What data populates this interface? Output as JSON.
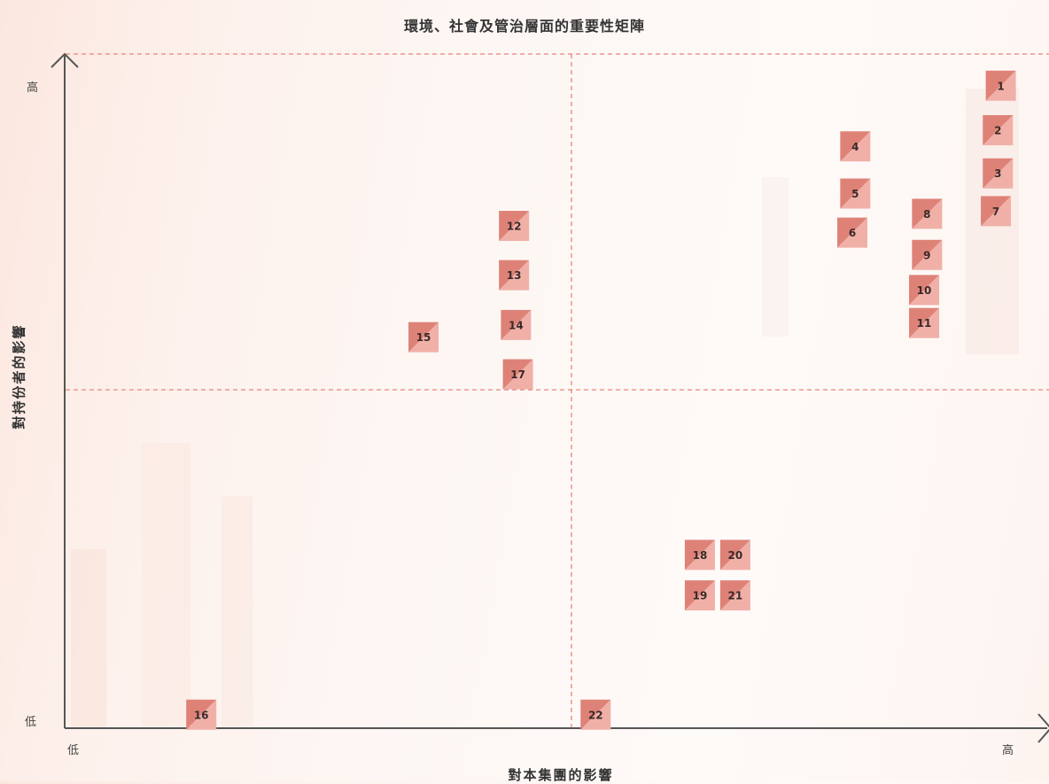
{
  "chart_data": {
    "type": "scatter",
    "title": "環境、社會及管治層面的重要性矩陣",
    "xlabel": "對本集團的影響",
    "ylabel": "對持份者的影響",
    "x_ticks": [
      "低",
      "高"
    ],
    "y_ticks": [
      "低",
      "高"
    ],
    "xlim": [
      0,
      100
    ],
    "ylim": [
      0,
      100
    ],
    "grid": "quadrant dividers",
    "colors": {
      "marker_dark": "#de8278",
      "marker_light": "#f0b0a8",
      "axis": "#555555",
      "divider": "#e8857a"
    },
    "points": [
      {
        "label": "1",
        "x": 95.1,
        "y": 95.3
      },
      {
        "label": "2",
        "x": 94.8,
        "y": 88.7
      },
      {
        "label": "3",
        "x": 94.8,
        "y": 82.3
      },
      {
        "label": "4",
        "x": 80.3,
        "y": 86.3
      },
      {
        "label": "5",
        "x": 80.3,
        "y": 79.3
      },
      {
        "label": "6",
        "x": 80.0,
        "y": 73.5
      },
      {
        "label": "7",
        "x": 94.6,
        "y": 76.7
      },
      {
        "label": "8",
        "x": 87.6,
        "y": 76.3
      },
      {
        "label": "9",
        "x": 87.6,
        "y": 70.2
      },
      {
        "label": "10",
        "x": 87.3,
        "y": 65.0
      },
      {
        "label": "11",
        "x": 87.3,
        "y": 60.1
      },
      {
        "label": "12",
        "x": 45.6,
        "y": 74.5
      },
      {
        "label": "13",
        "x": 45.6,
        "y": 67.2
      },
      {
        "label": "14",
        "x": 45.8,
        "y": 59.8
      },
      {
        "label": "15",
        "x": 36.4,
        "y": 58.0
      },
      {
        "label": "16",
        "x": 13.8,
        "y": 2.0
      },
      {
        "label": "17",
        "x": 46.0,
        "y": 52.5
      },
      {
        "label": "18",
        "x": 64.5,
        "y": 25.7
      },
      {
        "label": "19",
        "x": 64.5,
        "y": 19.7
      },
      {
        "label": "20",
        "x": 68.1,
        "y": 25.7
      },
      {
        "label": "21",
        "x": 68.1,
        "y": 19.7
      },
      {
        "label": "22",
        "x": 53.9,
        "y": 2.0
      }
    ]
  }
}
